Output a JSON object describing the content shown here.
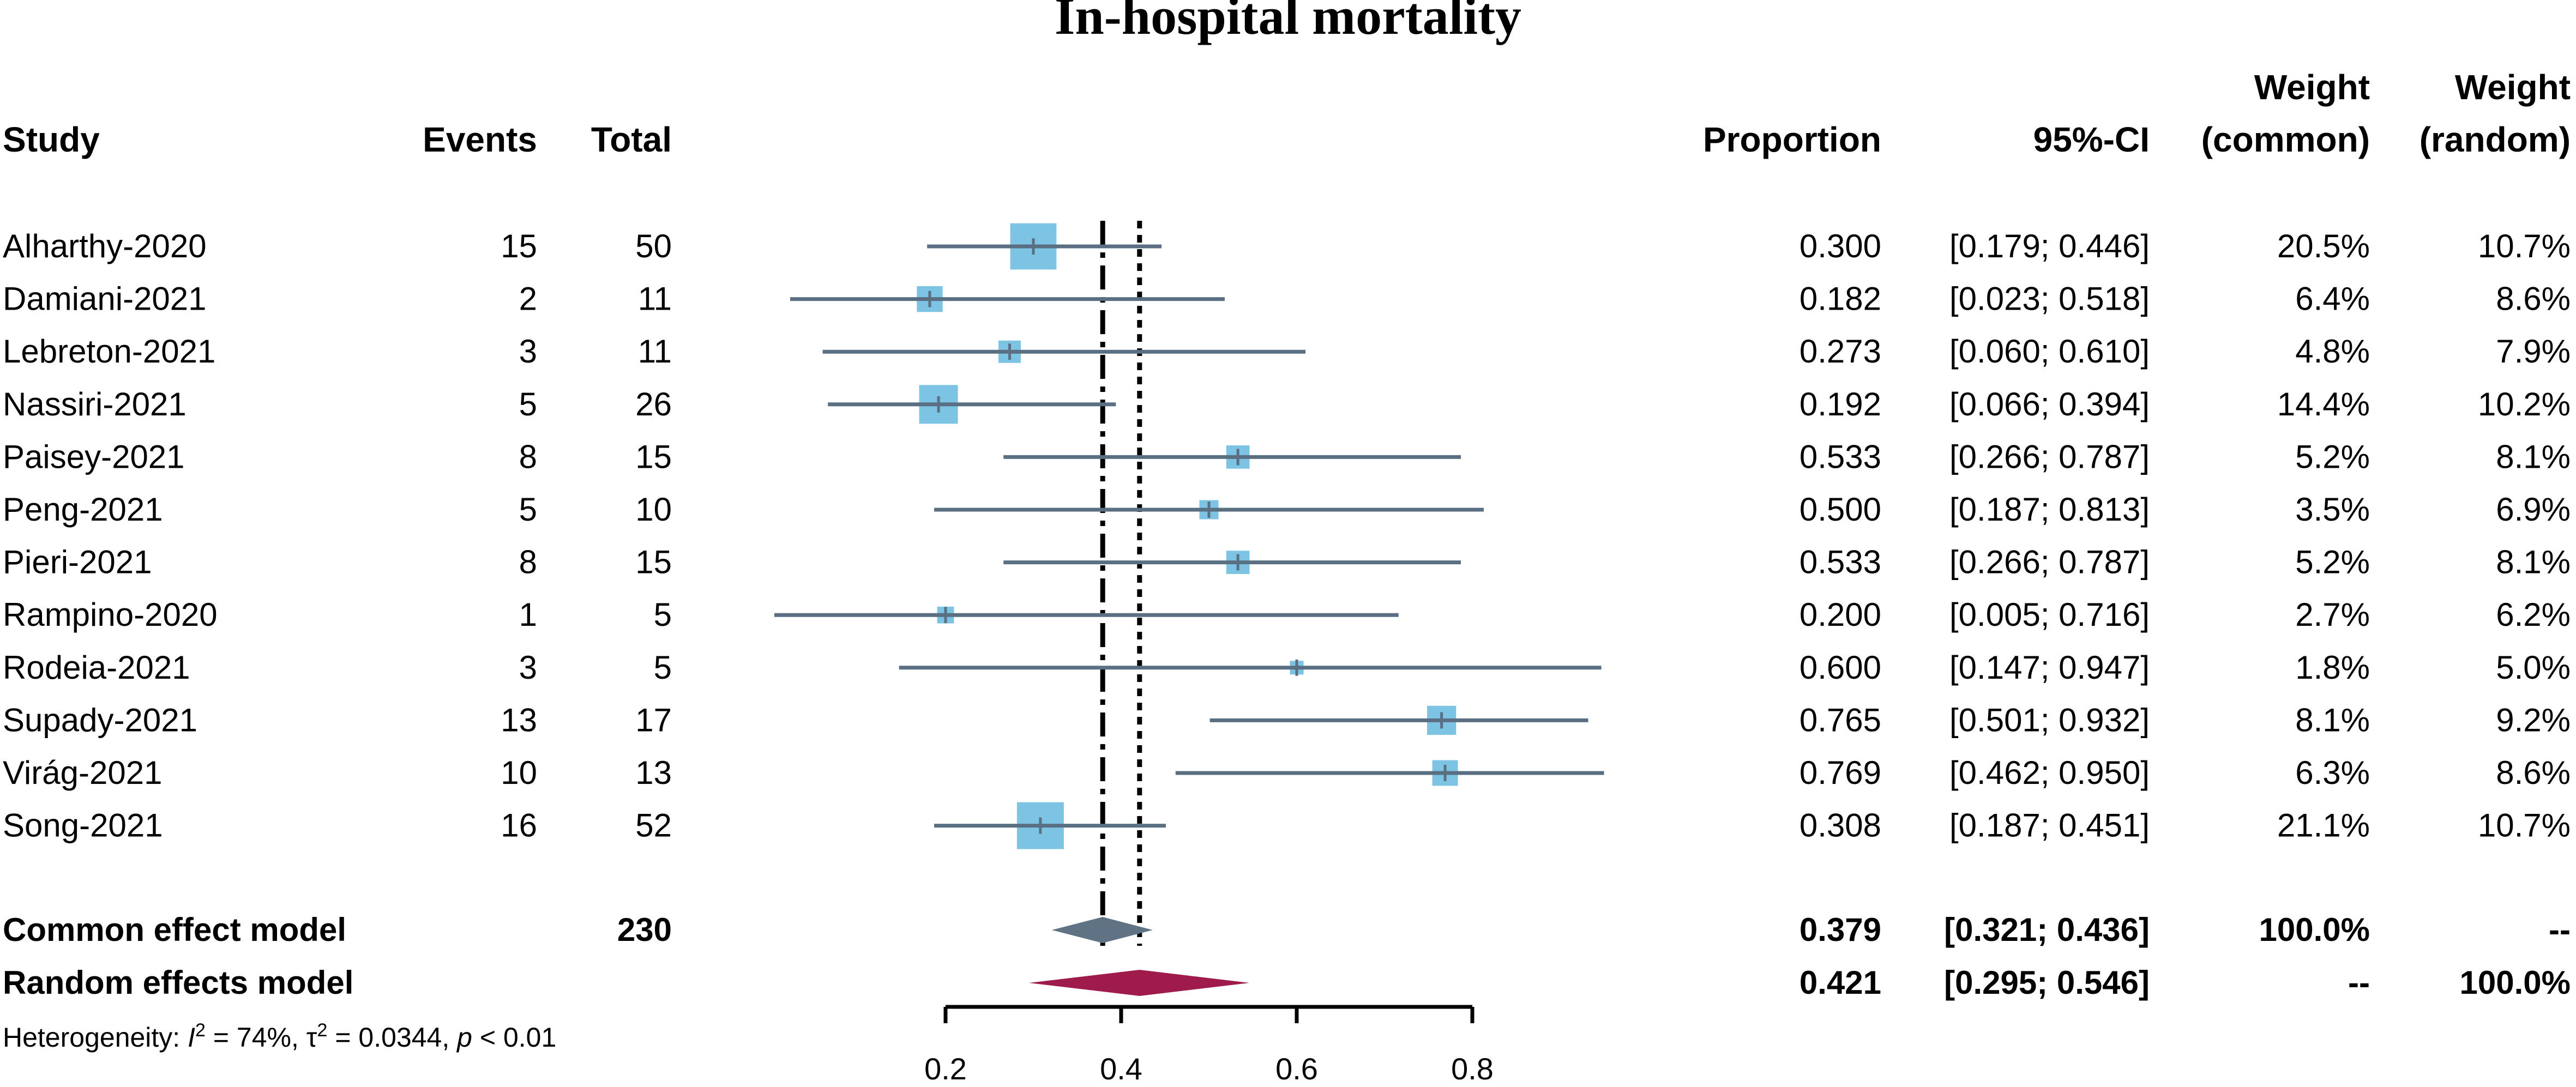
{
  "chart_data": {
    "type": "forest",
    "title": "In-hospital mortality",
    "headers": {
      "study": "Study",
      "events": "Events",
      "total": "Total",
      "proportion": "Proportion",
      "ci": "95%-CI",
      "weight_common_1": "Weight",
      "weight_common_2": "(common)",
      "weight_random_1": "Weight",
      "weight_random_2": "(random)"
    },
    "studies": [
      {
        "study": "Alharthy-2020",
        "events": "15",
        "total": "50",
        "prop": 0.3,
        "lo": 0.179,
        "hi": 0.446,
        "prop_text": "0.300",
        "ci_text": "[0.179; 0.446]",
        "w_common": "20.5%",
        "w_random": "10.7%",
        "w": 20.5
      },
      {
        "study": "Damiani-2021",
        "events": "2",
        "total": "11",
        "prop": 0.182,
        "lo": 0.023,
        "hi": 0.518,
        "prop_text": "0.182",
        "ci_text": "[0.023; 0.518]",
        "w_common": "6.4%",
        "w_random": "8.6%",
        "w": 6.4
      },
      {
        "study": "Lebreton-2021",
        "events": "3",
        "total": "11",
        "prop": 0.273,
        "lo": 0.06,
        "hi": 0.61,
        "prop_text": "0.273",
        "ci_text": "[0.060; 0.610]",
        "w_common": "4.8%",
        "w_random": "7.9%",
        "w": 4.8
      },
      {
        "study": "Nassiri-2021",
        "events": "5",
        "total": "26",
        "prop": 0.192,
        "lo": 0.066,
        "hi": 0.394,
        "prop_text": "0.192",
        "ci_text": "[0.066; 0.394]",
        "w_common": "14.4%",
        "w_random": "10.2%",
        "w": 14.4
      },
      {
        "study": "Paisey-2021",
        "events": "8",
        "total": "15",
        "prop": 0.533,
        "lo": 0.266,
        "hi": 0.787,
        "prop_text": "0.533",
        "ci_text": "[0.266; 0.787]",
        "w_common": "5.2%",
        "w_random": "8.1%",
        "w": 5.2
      },
      {
        "study": "Peng-2021",
        "events": "5",
        "total": "10",
        "prop": 0.5,
        "lo": 0.187,
        "hi": 0.813,
        "prop_text": "0.500",
        "ci_text": "[0.187; 0.813]",
        "w_common": "3.5%",
        "w_random": "6.9%",
        "w": 3.5
      },
      {
        "study": "Pieri-2021",
        "events": "8",
        "total": "15",
        "prop": 0.533,
        "lo": 0.266,
        "hi": 0.787,
        "prop_text": "0.533",
        "ci_text": "[0.266; 0.787]",
        "w_common": "5.2%",
        "w_random": "8.1%",
        "w": 5.2
      },
      {
        "study": "Rampino-2020",
        "events": "1",
        "total": "5",
        "prop": 0.2,
        "lo": 0.005,
        "hi": 0.716,
        "prop_text": "0.200",
        "ci_text": "[0.005; 0.716]",
        "w_common": "2.7%",
        "w_random": "6.2%",
        "w": 2.7
      },
      {
        "study": "Rodeia-2021",
        "events": "3",
        "total": "5",
        "prop": 0.6,
        "lo": 0.147,
        "hi": 0.947,
        "prop_text": "0.600",
        "ci_text": "[0.147; 0.947]",
        "w_common": "1.8%",
        "w_random": "5.0%",
        "w": 1.8
      },
      {
        "study": "Supady-2021",
        "events": "13",
        "total": "17",
        "prop": 0.765,
        "lo": 0.501,
        "hi": 0.932,
        "prop_text": "0.765",
        "ci_text": "[0.501; 0.932]",
        "w_common": "8.1%",
        "w_random": "9.2%",
        "w": 8.1
      },
      {
        "study": "Virág-2021",
        "events": "10",
        "total": "13",
        "prop": 0.769,
        "lo": 0.462,
        "hi": 0.95,
        "prop_text": "0.769",
        "ci_text": "[0.462; 0.950]",
        "w_common": "6.3%",
        "w_random": "8.6%",
        "w": 6.3
      },
      {
        "study": "Song-2021",
        "events": "16",
        "total": "52",
        "prop": 0.308,
        "lo": 0.187,
        "hi": 0.451,
        "prop_text": "0.308",
        "ci_text": "[0.187; 0.451]",
        "w_common": "21.1%",
        "w_random": "10.7%",
        "w": 21.1
      }
    ],
    "common": {
      "label": "Common effect model",
      "total": "230",
      "prop": 0.379,
      "lo": 0.321,
      "hi": 0.436,
      "prop_text": "0.379",
      "ci_text": "[0.321; 0.436]",
      "w_common": "100.0%",
      "w_random": "--"
    },
    "random": {
      "label": "Random effects model",
      "prop": 0.421,
      "lo": 0.295,
      "hi": 0.546,
      "prop_text": "0.421",
      "ci_text": "[0.295; 0.546]",
      "w_common": "--",
      "w_random": "100.0%"
    },
    "heterogeneity": {
      "prefix": "Heterogeneity: ",
      "i2_symbol": "I",
      "i2_sup": "2",
      "i2_value": " = 74%, ",
      "tau_symbol": "τ",
      "tau_sup": "2",
      "tau_value": " = 0.0344, ",
      "p_symbol": "p",
      "p_value": " < 0.01"
    },
    "xaxis": {
      "ticks": [
        0.2,
        0.4,
        0.6,
        0.8
      ],
      "tick_labels": [
        "0.2",
        "0.4",
        "0.6",
        "0.8"
      ],
      "xlim": [
        0.2,
        0.8
      ]
    },
    "colors": {
      "square": "#7dc4e4",
      "ci_line": "#5b6f82",
      "common_diamond": "#5f7385",
      "random_diamond": "#9e1b4b",
      "text": "#000000"
    }
  }
}
